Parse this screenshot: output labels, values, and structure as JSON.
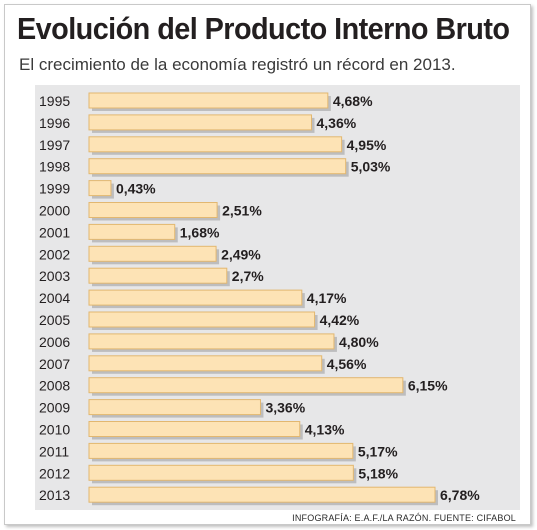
{
  "title": "Evolución del Producto Interno Bruto",
  "subtitle": "El crecimiento de la economía registró un récord en 2013.",
  "source": "INFOGRAFÍA: E.A.F./LA RAZÓN. FUENTE: CIFABOL",
  "colors": {
    "bar_fill": "#fde3b5",
    "bar_stroke": "#e2b770",
    "bar_shadow": "#9a9a9a",
    "panel": "#e7e7e8"
  },
  "chart_data": {
    "type": "bar",
    "orientation": "horizontal",
    "title": "Evolución del Producto Interno Bruto",
    "subtitle": "El crecimiento de la economía registró un récord en 2013.",
    "categories": [
      "1995",
      "1996",
      "1997",
      "1998",
      "1999",
      "2000",
      "2001",
      "2002",
      "2003",
      "2004",
      "2005",
      "2006",
      "2007",
      "2008",
      "2009",
      "2010",
      "2011",
      "2012",
      "2013"
    ],
    "values": [
      4.68,
      4.36,
      4.95,
      5.03,
      0.43,
      2.51,
      1.68,
      2.49,
      2.7,
      4.17,
      4.42,
      4.8,
      4.56,
      6.15,
      3.36,
      4.13,
      5.17,
      5.18,
      6.78
    ],
    "value_labels": [
      "4,68%",
      "4,36%",
      "4,95%",
      "5,03%",
      "0,43%",
      "2,51%",
      "1,68%",
      "2,49%",
      "2,7%",
      "4,17%",
      "4,42%",
      "4,80%",
      "4,56%",
      "6,15%",
      "3,36%",
      "4,13%",
      "5,17%",
      "5,18%",
      "6,78%"
    ],
    "unit": "%",
    "xlim": [
      0,
      6.78
    ],
    "grid": false,
    "legend": "none"
  }
}
